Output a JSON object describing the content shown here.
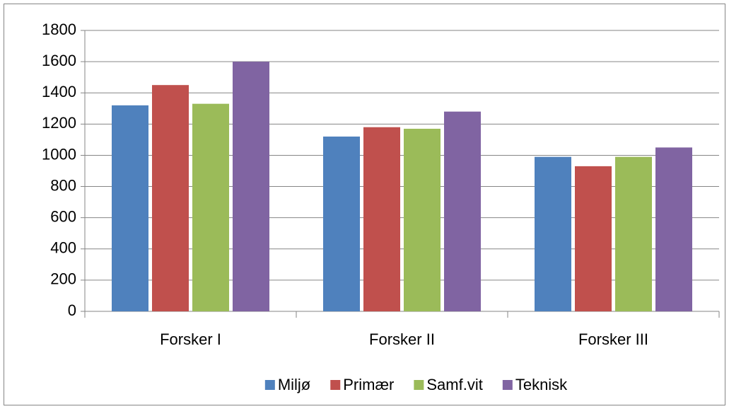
{
  "chart_data": {
    "type": "bar",
    "categories": [
      "Forsker I",
      "Forsker II",
      "Forsker III"
    ],
    "series": [
      {
        "name": "Miljø",
        "color": "#4f81bd",
        "values": [
          1320,
          1120,
          990
        ]
      },
      {
        "name": "Primær",
        "color": "#c0504d",
        "values": [
          1450,
          1180,
          930
        ]
      },
      {
        "name": "Samf.vit",
        "color": "#9bbb59",
        "values": [
          1330,
          1170,
          990
        ]
      },
      {
        "name": "Teknisk",
        "color": "#8064a2",
        "values": [
          1600,
          1280,
          1050
        ]
      }
    ],
    "ylim": [
      0,
      1800
    ],
    "yticks": [
      0,
      200,
      400,
      600,
      800,
      1000,
      1200,
      1400,
      1600,
      1800
    ],
    "grid": true,
    "legend": "bottom"
  }
}
